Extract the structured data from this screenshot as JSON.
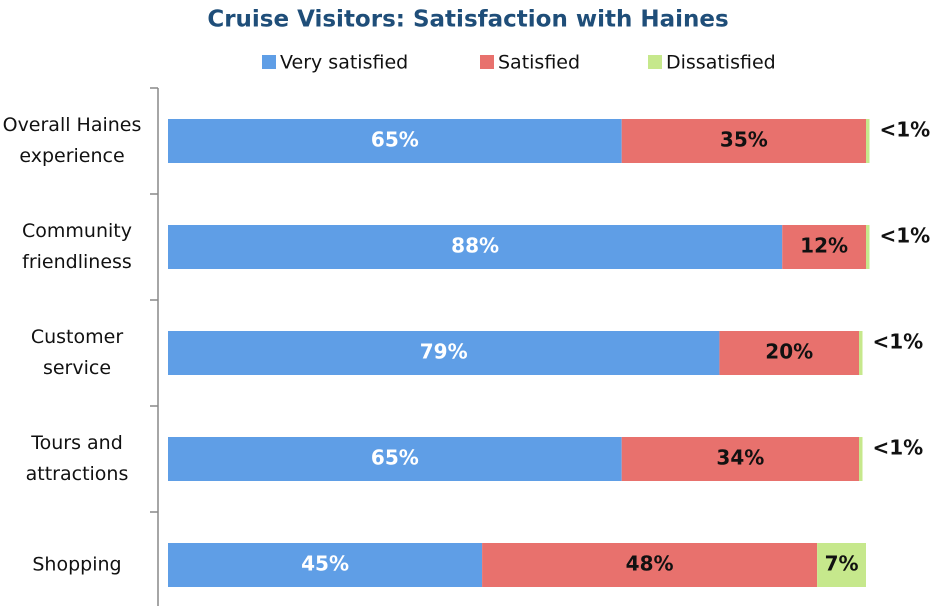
{
  "chart_data": {
    "type": "bar",
    "orientation": "horizontal",
    "stacked": true,
    "title": "Cruise Visitors: Satisfaction with Haines",
    "categories": [
      "Overall Haines experience",
      "Community friendliness",
      "Customer service",
      "Tours and attractions",
      "Shopping"
    ],
    "series": [
      {
        "name": "Very satisfied",
        "color": "#5f9ee6",
        "values": [
          65,
          88,
          79,
          65,
          45
        ],
        "value_labels": [
          "65%",
          "88%",
          "79%",
          "65%",
          "45%"
        ]
      },
      {
        "name": "Satisfied",
        "color": "#e8716d",
        "values": [
          35,
          12,
          20,
          34,
          48
        ],
        "value_labels": [
          "35%",
          "12%",
          "20%",
          "34%",
          "48%"
        ]
      },
      {
        "name": "Dissatisfied",
        "color": "#c6e88c",
        "values": [
          0.5,
          0.5,
          0.5,
          0.5,
          7
        ],
        "value_labels": [
          "<1%",
          "<1%",
          "<1%",
          "<1%",
          "7%"
        ]
      }
    ],
    "xlim": [
      0,
      100
    ],
    "legend": "top"
  }
}
